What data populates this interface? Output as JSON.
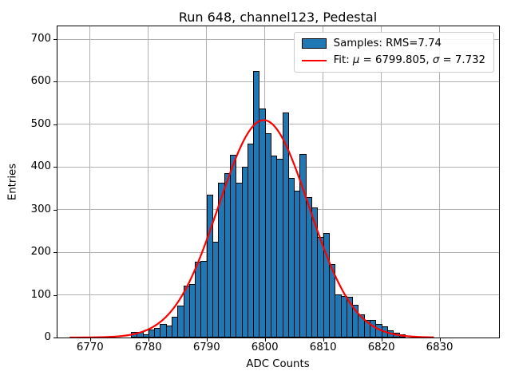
{
  "chart": {
    "title": "Run 648, channel123, Pedestal",
    "xlabel": "ADC Counts",
    "ylabel": "Entries"
  },
  "legend": {
    "samples_label": "Samples: RMS=7.74",
    "fit_prefix": "Fit: ",
    "fit_mu_symbol": "μ",
    "fit_mu_value": " = 6799.805, ",
    "fit_sigma_symbol": "σ",
    "fit_sigma_value": " = 7.732"
  },
  "chart_data": {
    "type": "bar",
    "subtype": "histogram-with-gaussian-fit",
    "title": "Run 648, channel123, Pedestal",
    "xlabel": "ADC Counts",
    "ylabel": "Entries",
    "bin_start": 6777,
    "bin_width": 1,
    "counts": [
      13,
      13,
      8,
      18,
      23,
      32,
      29,
      48,
      75,
      122,
      125,
      178,
      180,
      335,
      224,
      364,
      385,
      428,
      364,
      400,
      455,
      625,
      538,
      480,
      426,
      420,
      528,
      375,
      345,
      430,
      330,
      305,
      236,
      245,
      173,
      101,
      98,
      95,
      76,
      54,
      42,
      42,
      32,
      26,
      17,
      11,
      8
    ],
    "samples_rms": 7.74,
    "fit": {
      "mu": 6799.805,
      "sigma": 7.732,
      "amplitude": 510,
      "x_start": 6766.5,
      "x_end": 6829.2
    },
    "xlim": [
      6764.4,
      6840.2
    ],
    "ylim": [
      0,
      730
    ],
    "xticks": [
      6770,
      6780,
      6790,
      6800,
      6810,
      6820,
      6830
    ],
    "yticks": [
      0,
      100,
      200,
      300,
      400,
      500,
      600,
      700
    ],
    "grid": true,
    "legend_position": "upper-right",
    "colors": {
      "bar_fill": "#1f77b4",
      "bar_edge": "#000000",
      "fit_line": "#ff0000",
      "grid": "#b0b0b0",
      "background": "#ffffff"
    }
  }
}
